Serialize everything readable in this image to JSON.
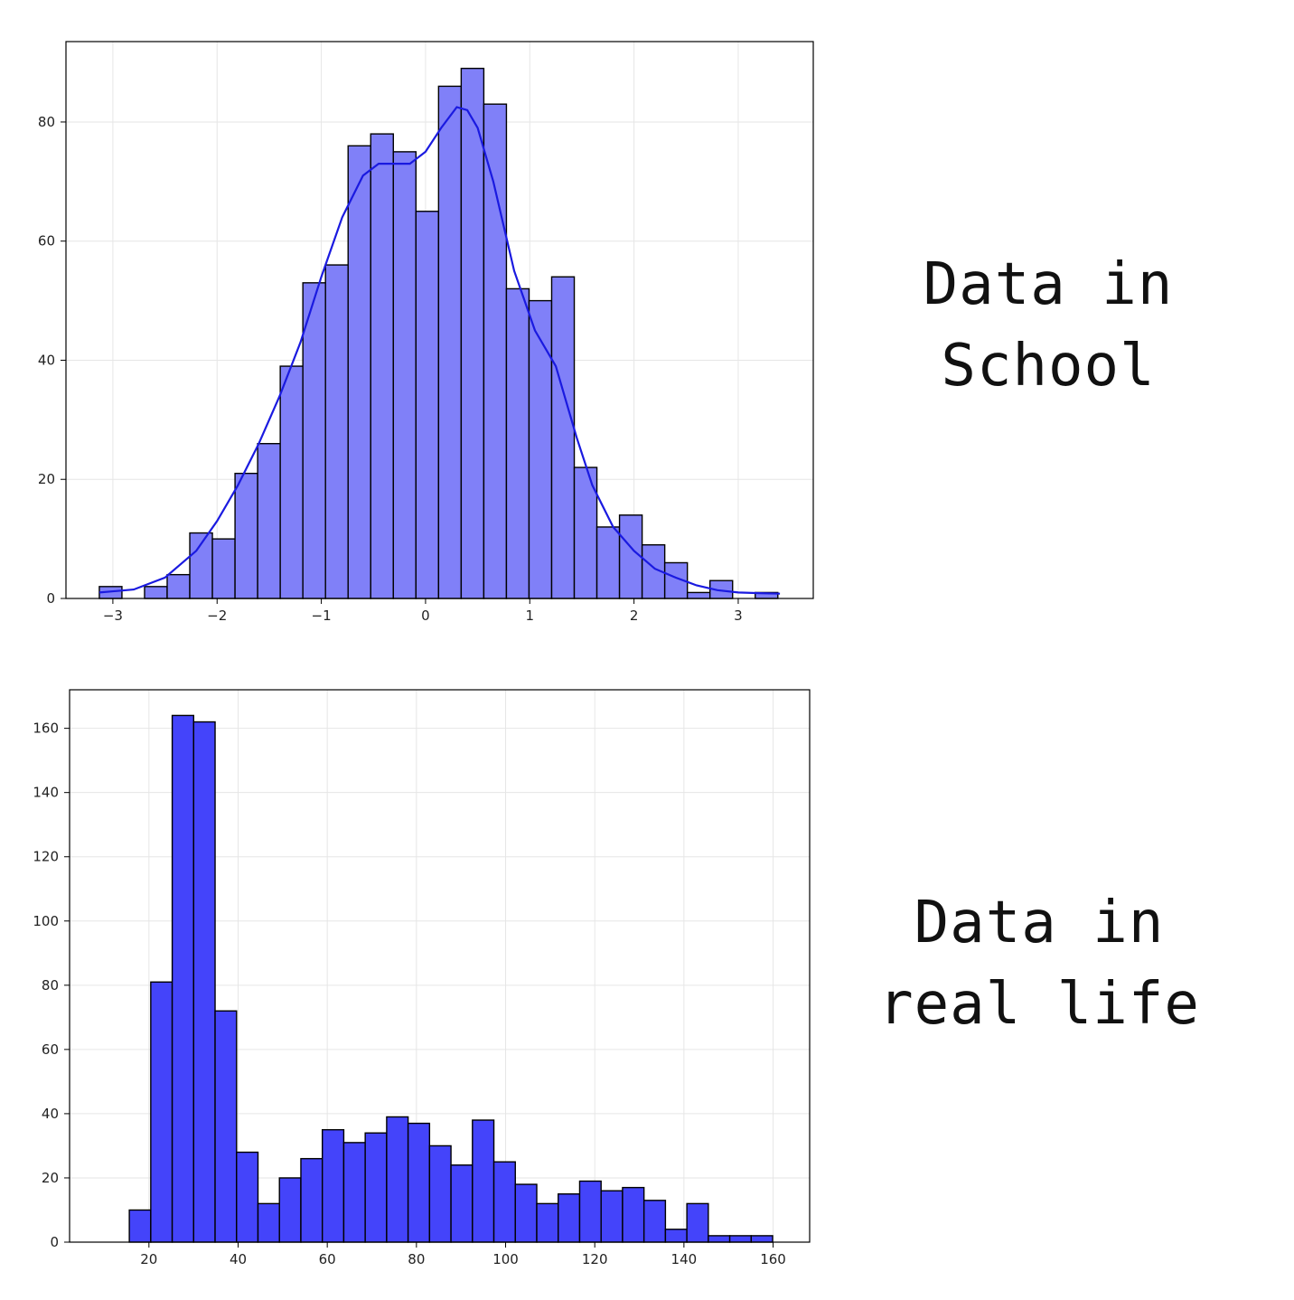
{
  "captions": {
    "top": {
      "line1": "Data in",
      "line2": "School"
    },
    "bottom": {
      "line1": "Data in",
      "line2": "real life"
    }
  },
  "chart_data": [
    {
      "type": "bar",
      "title": "",
      "xlabel": "",
      "ylabel": "",
      "bar_color": "#8080f8",
      "kde_color": "#1a1ae0",
      "xlim": [
        -3.45,
        3.72
      ],
      "ylim": [
        0,
        93.5
      ],
      "grid": true,
      "xticks": [
        -3,
        -2,
        -1,
        0,
        1,
        2,
        3
      ],
      "xtick_labels": [
        "−3",
        "−2",
        "−1",
        "0",
        "1",
        "2",
        "3"
      ],
      "yticks": [
        0,
        20,
        40,
        60,
        80
      ],
      "ytick_labels": [
        "0",
        "20",
        "40",
        "60",
        "80"
      ],
      "bin_start": -3.13,
      "bin_width": 0.217,
      "values": [
        2,
        0,
        2,
        4,
        11,
        10,
        21,
        26,
        39,
        53,
        56,
        76,
        78,
        75,
        65,
        86,
        89,
        83,
        52,
        50,
        54,
        22,
        12,
        14,
        9,
        6,
        1,
        3,
        0,
        1
      ],
      "kde_x": [
        -3.13,
        -2.8,
        -2.5,
        -2.2,
        -2.0,
        -1.8,
        -1.6,
        -1.4,
        -1.2,
        -1.0,
        -0.8,
        -0.6,
        -0.45,
        -0.3,
        -0.15,
        0.0,
        0.15,
        0.3,
        0.4,
        0.5,
        0.65,
        0.85,
        1.05,
        1.25,
        1.45,
        1.6,
        1.8,
        2.0,
        2.2,
        2.4,
        2.6,
        2.8,
        3.0,
        3.2,
        3.4
      ],
      "kde_y": [
        1,
        1.5,
        3.5,
        8,
        13,
        19,
        26,
        34,
        43,
        54,
        64,
        71,
        73,
        73,
        73,
        75,
        79,
        82.5,
        82,
        79,
        70,
        55,
        45,
        39,
        27,
        19,
        12,
        8,
        5,
        3.5,
        2.2,
        1.4,
        1,
        0.9,
        0.8
      ]
    },
    {
      "type": "bar",
      "title": "",
      "xlabel": "",
      "ylabel": "",
      "bar_color": "#4444fa",
      "xlim": [
        2.2,
        168.2
      ],
      "ylim": [
        0,
        172
      ],
      "grid": true,
      "xticks": [
        20,
        40,
        60,
        80,
        100,
        120,
        140,
        160
      ],
      "xtick_labels": [
        "20",
        "40",
        "60",
        "80",
        "100",
        "120",
        "140",
        "160"
      ],
      "yticks": [
        0,
        20,
        40,
        60,
        80,
        100,
        120,
        140,
        160
      ],
      "ytick_labels": [
        "0",
        "20",
        "40",
        "60",
        "80",
        "100",
        "120",
        "140",
        "160"
      ],
      "bin_start": 15.6,
      "bin_width": 4.81,
      "values": [
        10,
        81,
        164,
        162,
        72,
        28,
        12,
        20,
        26,
        35,
        31,
        34,
        39,
        37,
        30,
        24,
        38,
        25,
        18,
        12,
        15,
        19,
        16,
        17,
        13,
        4,
        12,
        2,
        2,
        2
      ]
    }
  ]
}
